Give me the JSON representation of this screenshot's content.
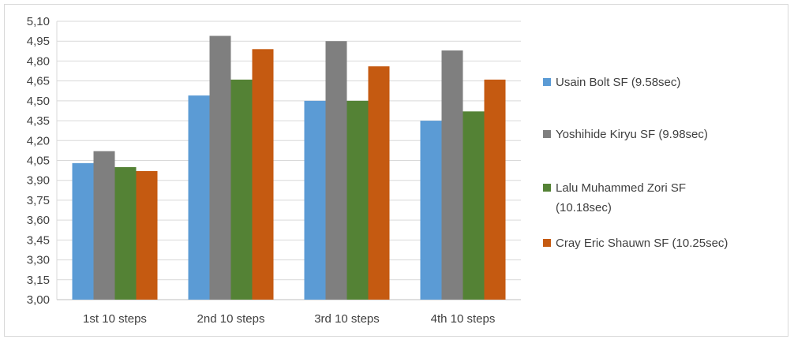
{
  "chart_data": {
    "type": "bar",
    "title": "",
    "xlabel": "",
    "ylabel": "",
    "categories": [
      "1st 10 steps",
      "2nd 10 steps",
      "3rd 10 steps",
      "4th 10 steps"
    ],
    "ylim": [
      3.0,
      5.1
    ],
    "yticks": [
      "3,00",
      "3,15",
      "3,30",
      "3,45",
      "3,60",
      "3,75",
      "3,90",
      "4,05",
      "4,20",
      "4,35",
      "4,50",
      "4,65",
      "4,80",
      "4,95",
      "5,10"
    ],
    "grid": true,
    "legend_position": "right",
    "series": [
      {
        "name": "Usain Bolt SF (9.58sec)",
        "color": "#5b9bd5",
        "values": [
          4.03,
          4.54,
          4.5,
          4.35
        ]
      },
      {
        "name": "Yoshihide Kiryu SF (9.98sec)",
        "color": "#7f7f7f",
        "values": [
          4.12,
          4.99,
          4.95,
          4.88
        ]
      },
      {
        "name": "Lalu Muhammed Zori SF (10.18sec)",
        "color": "#548235",
        "values": [
          4.0,
          4.66,
          4.5,
          4.42
        ]
      },
      {
        "name": "Cray Eric Shauwn SF (10.25sec)",
        "color": "#c55a11",
        "values": [
          3.97,
          4.89,
          4.76,
          4.66
        ]
      }
    ]
  }
}
